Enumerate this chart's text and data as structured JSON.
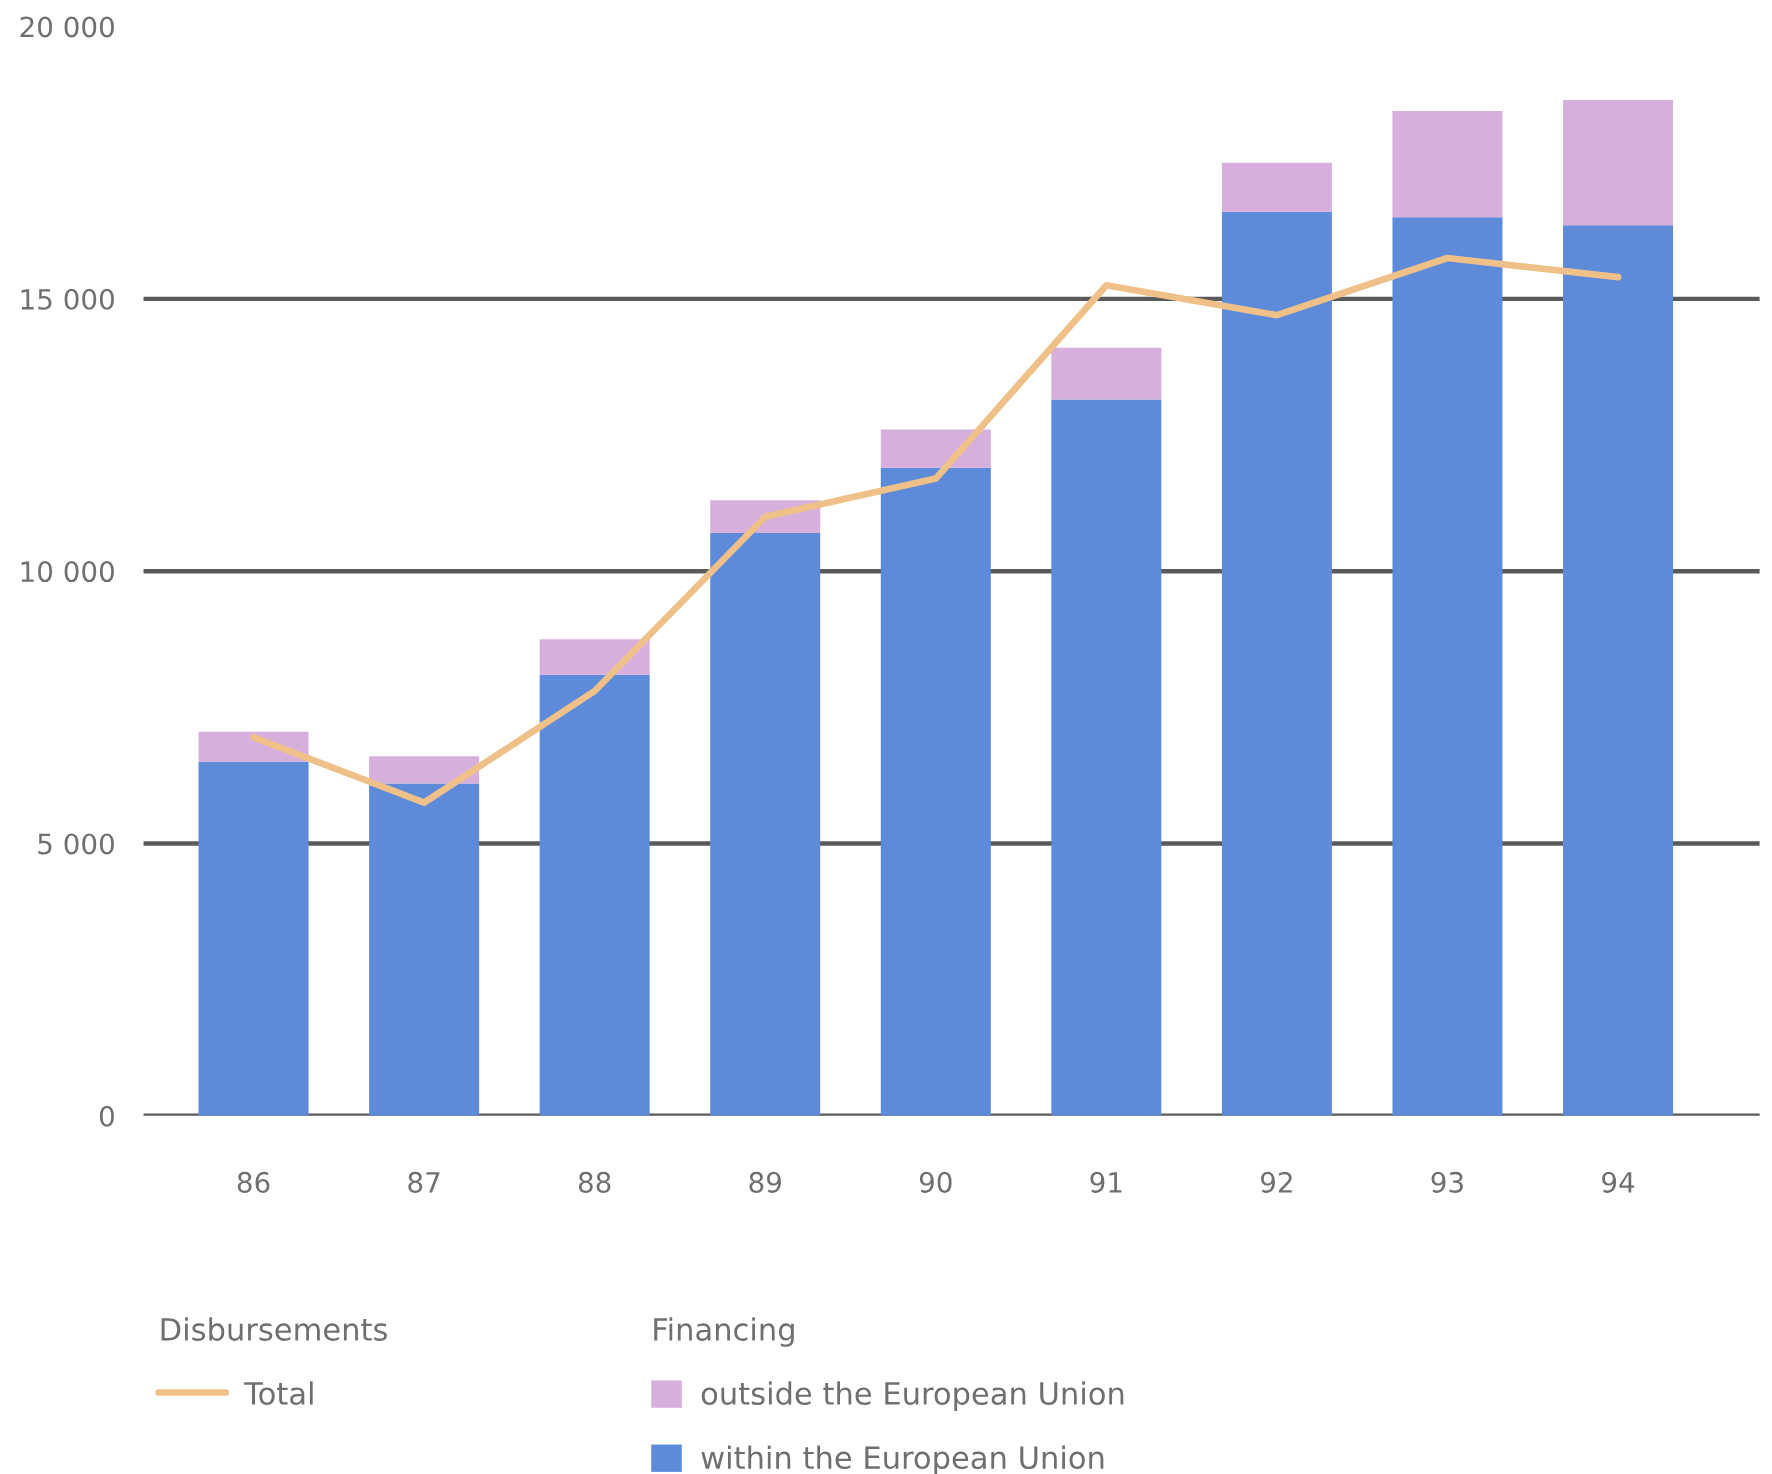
{
  "chart_data": {
    "type": "bar",
    "stacked": true,
    "categories": [
      "86",
      "87",
      "88",
      "89",
      "90",
      "91",
      "92",
      "93",
      "94"
    ],
    "series": [
      {
        "name": "within the European Union",
        "color": "#5d8ad9",
        "values": [
          6500,
          6100,
          8100,
          10700,
          11900,
          13150,
          16600,
          16500,
          16350
        ]
      },
      {
        "name": "outside the European Union",
        "color": "#d6afdc",
        "values": [
          550,
          500,
          650,
          600,
          700,
          950,
          900,
          1950,
          2300
        ]
      },
      {
        "name": "Total",
        "type": "line",
        "color": "#efc188",
        "values": [
          6950,
          5750,
          7800,
          11000,
          11700,
          15250,
          14700,
          15750,
          15400
        ]
      }
    ],
    "ylim": [
      0,
      20000
    ],
    "yticks": [
      0,
      {
        "value": 5000,
        "label": "5 000"
      },
      {
        "value": 10000,
        "label": "10 000"
      },
      {
        "value": 15000,
        "label": "15 000"
      },
      {
        "value": 20000,
        "label": "20 000"
      }
    ],
    "grid": "y",
    "legend": "bottom",
    "line_style": "solid",
    "annotations": [
      "Disbursements",
      "Financing"
    ]
  }
}
